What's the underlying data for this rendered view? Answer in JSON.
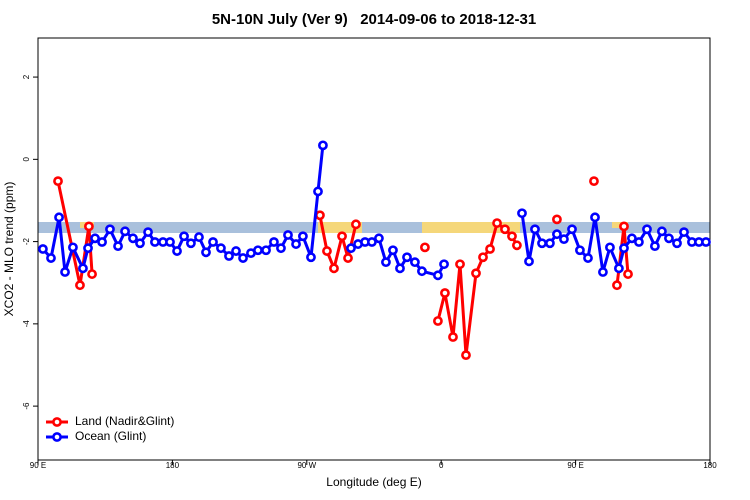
{
  "chart_data": {
    "type": "line",
    "title": "5N-10N July (Ver 9)   2014-09-06 to 2018-12-31",
    "x_label": "Longitude (deg E)",
    "y_label": "XCO2 - MLO trend (ppm)",
    "xlim": [
      90,
      540
    ],
    "ylim": [
      -7.31,
      2.95
    ],
    "xticks": [
      {
        "value": 90,
        "label": "90 E"
      },
      180,
      {
        "value": 270,
        "label": "90 W"
      },
      {
        "value": 360,
        "label": "0"
      },
      {
        "value": 450,
        "label": "90 E"
      },
      {
        "value": 540,
        "label": "180"
      }
    ],
    "yticks": [
      2,
      0,
      -2,
      -4,
      -6
    ],
    "legend": "bottom-left",
    "series": [
      {
        "name": "Land (Nadir&Glint)",
        "color": "#ff0000",
        "x": [
          103.4,
          118.1,
          124.1,
          126.2,
          null,
          278.8,
          283.5,
          288.2,
          293.6,
          297.6,
          302.9,
          null,
          349.1,
          null,
          357.8,
          362.5,
          367.9,
          372.6,
          376.6,
          383.3,
          388.0,
          392.7,
          397.4,
          402.7,
          407.4,
          410.7,
          null,
          437.5,
          null,
          462.3,
          null,
          477.7,
          482.4,
          485.1
        ],
        "values": [
          -0.53,
          -3.06,
          -1.63,
          -2.79,
          null,
          -1.36,
          -2.23,
          -2.65,
          -1.87,
          -2.4,
          -1.58,
          null,
          -2.14,
          null,
          -3.93,
          -3.25,
          -4.32,
          -2.55,
          -4.76,
          -2.77,
          -2.38,
          -2.18,
          -1.55,
          -1.7,
          -1.87,
          -2.09,
          null,
          -1.46,
          null,
          -0.53,
          null,
          -3.06,
          -1.63,
          -2.79
        ]
      },
      {
        "name": "Ocean (Glint)",
        "color": "#0000ff",
        "x": [
          93.3,
          98.7,
          104.1,
          108.1,
          113.4,
          120.1,
          123.5,
          128.2,
          132.9,
          138.2,
          143.6,
          148.3,
          153.6,
          158.3,
          163.7,
          168.3,
          173.7,
          178.4,
          183.1,
          187.8,
          192.4,
          197.8,
          202.5,
          207.2,
          212.5,
          217.9,
          222.6,
          227.3,
          232.6,
          237.3,
          242.7,
          248.0,
          252.7,
          257.4,
          262.8,
          267.4,
          272.8,
          277.5,
          280.8,
          null,
          299.6,
          304.3,
          309.0,
          313.6,
          318.3,
          323.0,
          327.7,
          332.4,
          337.1,
          342.4,
          347.1,
          357.8,
          361.9,
          null,
          414.1,
          418.8,
          422.8,
          427.5,
          432.8,
          437.5,
          442.2,
          447.6,
          452.9,
          458.3,
          463.0,
          468.3,
          473.0,
          479.0,
          482.4,
          487.7,
          492.4,
          497.8,
          503.1,
          507.8,
          512.5,
          517.9,
          522.6,
          527.9,
          532.6,
          537.3
        ],
        "values": [
          -2.18,
          -2.4,
          -1.41,
          -2.74,
          -2.14,
          -2.65,
          -2.16,
          -1.92,
          -2.01,
          -1.7,
          -2.11,
          -1.75,
          -1.92,
          -2.04,
          -1.77,
          -2.01,
          -2.01,
          -2.01,
          -2.23,
          -1.87,
          -2.04,
          -1.89,
          -2.26,
          -2.01,
          -2.16,
          -2.35,
          -2.23,
          -2.4,
          -2.28,
          -2.21,
          -2.21,
          -2.01,
          -2.16,
          -1.84,
          -2.06,
          -1.87,
          -2.38,
          -0.78,
          0.34,
          null,
          -2.16,
          -2.06,
          -2.01,
          -2.01,
          -1.92,
          -2.5,
          -2.21,
          -2.65,
          -2.38,
          -2.5,
          -2.72,
          -2.82,
          -2.55,
          null,
          -1.31,
          -2.48,
          -1.7,
          -2.04,
          -2.04,
          -1.82,
          -1.94,
          -1.7,
          -2.21,
          -2.4,
          -1.41,
          -2.74,
          -2.14,
          -2.65,
          -2.16,
          -1.92,
          -2.01,
          -1.7,
          -2.11,
          -1.75,
          -1.92,
          -2.04,
          -1.77,
          -2.01,
          -2.01,
          -2.01
        ]
      }
    ]
  }
}
